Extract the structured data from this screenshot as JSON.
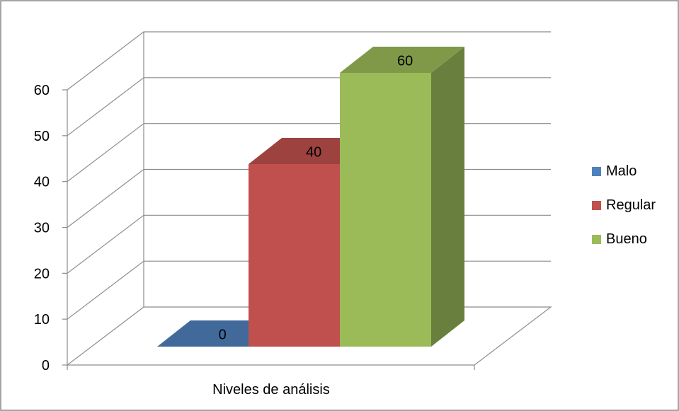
{
  "chart_data": {
    "type": "bar",
    "subtype": "3d-clustered-column",
    "categories": [
      "Niveles de análisis"
    ],
    "series": [
      {
        "name": "Malo",
        "values": [
          0
        ],
        "color": "#4f81bd",
        "data_label": "0"
      },
      {
        "name": "Regular",
        "values": [
          40
        ],
        "color": "#c0504d",
        "data_label": "40"
      },
      {
        "name": "Bueno",
        "values": [
          60
        ],
        "color": "#9bbb59",
        "data_label": "60"
      }
    ],
    "title": "",
    "xlabel": "",
    "ylabel": "",
    "ylim": [
      0,
      60
    ],
    "yticks": [
      "0",
      "10",
      "20",
      "30",
      "40",
      "50",
      "60"
    ],
    "ytick_step": 10,
    "grid": true,
    "legend": "right"
  }
}
